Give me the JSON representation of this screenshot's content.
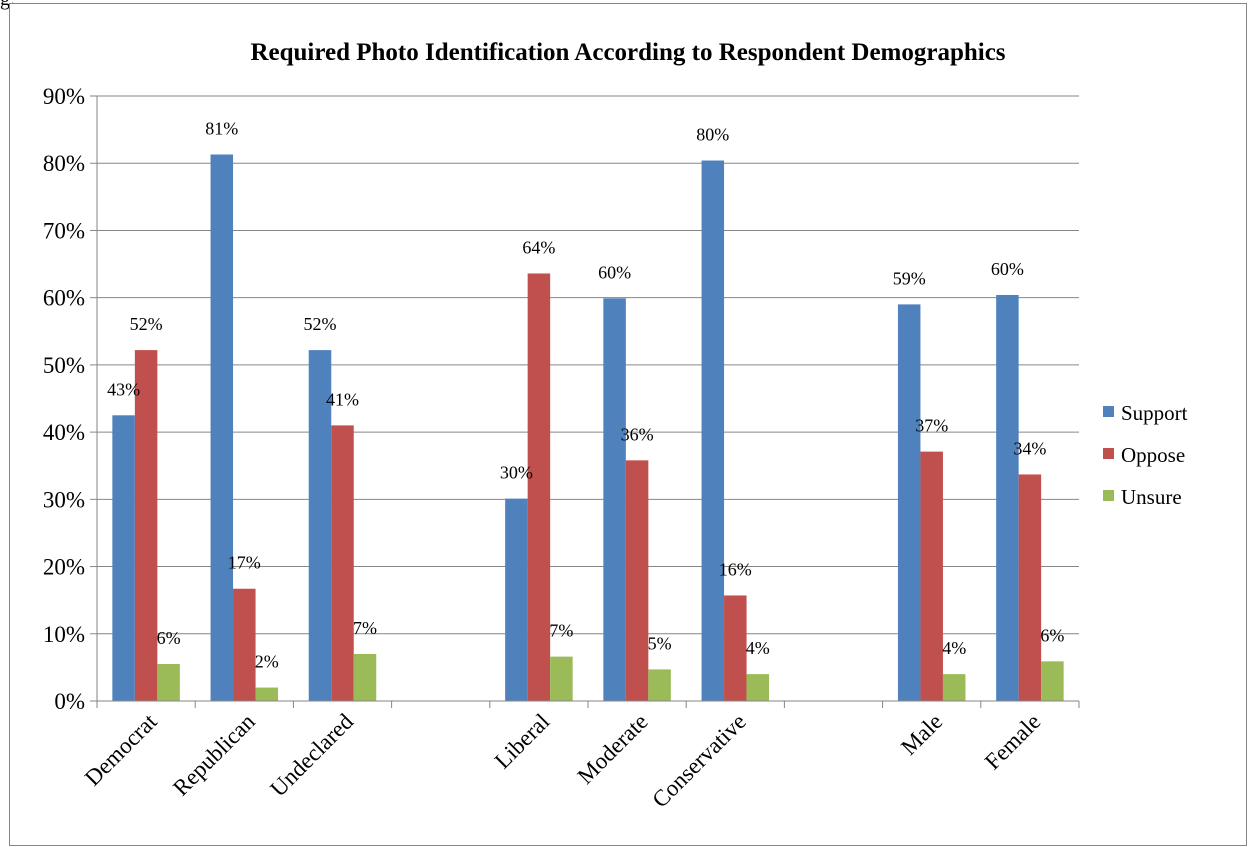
{
  "page_label": "g.",
  "chart_data": {
    "type": "bar",
    "title": "Required Photo Identification According to Respondent Demographics",
    "xlabel": "",
    "ylabel": "",
    "ylim": [
      0,
      90
    ],
    "yticks": [
      "0%",
      "10%",
      "20%",
      "30%",
      "40%",
      "50%",
      "60%",
      "70%",
      "80%",
      "90%"
    ],
    "grid": true,
    "legend_position": "right",
    "categories": [
      "Democrat",
      "Republican",
      "Undeclared",
      "",
      "Liberal",
      "Moderate",
      "Conservative",
      "",
      "Male",
      "Female"
    ],
    "series": [
      {
        "name": "Support",
        "color": "#4F81BD",
        "values": [
          42.5,
          81.3,
          52.2,
          null,
          30.1,
          59.9,
          80.4,
          null,
          59.0,
          60.4
        ],
        "labels": [
          "43%",
          "81%",
          "52%",
          "",
          "30%",
          "60%",
          "80%",
          "",
          "59%",
          "60%"
        ]
      },
      {
        "name": "Oppose",
        "color": "#C0504D",
        "values": [
          52.2,
          16.7,
          41.0,
          null,
          63.6,
          35.8,
          15.7,
          null,
          37.1,
          33.7
        ],
        "labels": [
          "52%",
          "17%",
          "41%",
          "",
          "64%",
          "36%",
          "16%",
          "",
          "37%",
          "34%"
        ]
      },
      {
        "name": "Unsure",
        "color": "#9BBB59",
        "values": [
          5.5,
          2.0,
          7.0,
          null,
          6.6,
          4.7,
          4.0,
          null,
          4.0,
          5.9
        ],
        "labels": [
          "6%",
          "2%",
          "7%",
          "",
          "7%",
          "5%",
          "4%",
          "",
          "4%",
          "6%"
        ]
      }
    ]
  }
}
